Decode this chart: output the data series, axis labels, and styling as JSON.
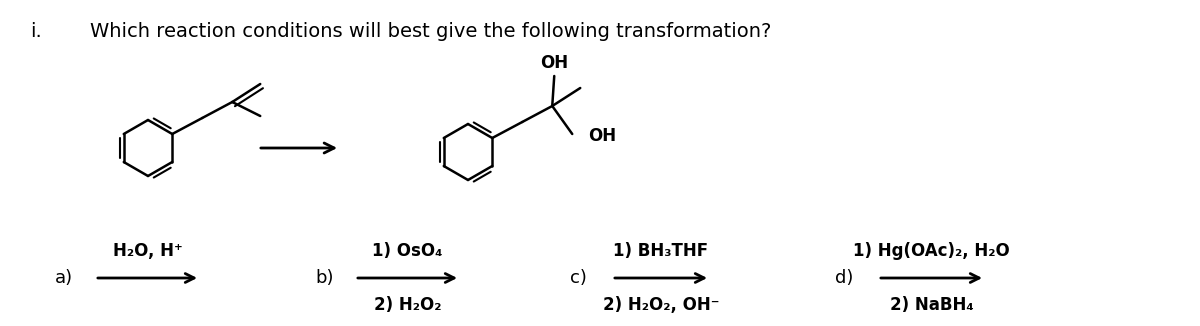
{
  "title_roman": "i.",
  "title_text": "Which reaction conditions will best give the following transformation?",
  "bg_color": "#ffffff",
  "text_color": "#000000",
  "font_size_title": 14,
  "font_size_label": 13,
  "font_size_chem": 12,
  "choices": [
    {
      "label": "a)",
      "line1": "H₂O, H⁺",
      "line2": null
    },
    {
      "label": "b)",
      "line1": "1) OsO₄",
      "line2": "2) H₂O₂"
    },
    {
      "label": "c)",
      "line1": "1) BH₃THF",
      "line2": "2) H₂O₂, OH⁻"
    },
    {
      "label": "d)",
      "line1": "1) Hg(OAc)₂, H₂O",
      "line2": "2) NaBH₄"
    }
  ]
}
